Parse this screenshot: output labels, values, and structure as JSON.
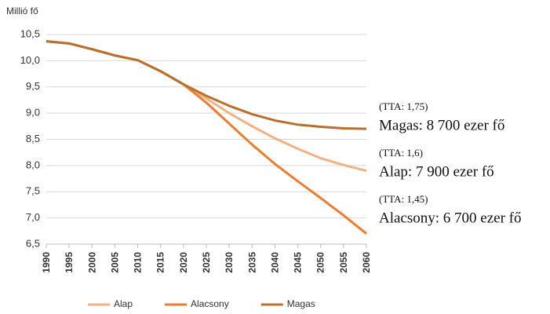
{
  "chart_data": {
    "type": "line",
    "y_axis_label": "Millió fő",
    "x": [
      1990,
      1995,
      2000,
      2005,
      2010,
      2015,
      2020,
      2025,
      2030,
      2035,
      2040,
      2045,
      2050,
      2055,
      2060
    ],
    "series": [
      {
        "name": "Alap",
        "color": "#f4b183",
        "values": [
          10.37,
          10.33,
          10.22,
          10.1,
          10.01,
          9.8,
          9.55,
          9.28,
          9.0,
          8.75,
          8.52,
          8.32,
          8.14,
          8.01,
          7.9
        ]
      },
      {
        "name": "Alacsony",
        "color": "#ed7d31",
        "values": [
          10.37,
          10.33,
          10.22,
          10.1,
          10.01,
          9.8,
          9.55,
          9.2,
          8.8,
          8.4,
          8.03,
          7.7,
          7.38,
          7.05,
          6.7
        ]
      },
      {
        "name": "Magas",
        "color": "#b8702e",
        "values": [
          10.37,
          10.33,
          10.22,
          10.1,
          10.01,
          9.8,
          9.55,
          9.33,
          9.14,
          8.98,
          8.86,
          8.78,
          8.74,
          8.71,
          8.7
        ]
      }
    ],
    "xlim": [
      1990,
      2060
    ],
    "xticks": [
      1990,
      1995,
      2000,
      2005,
      2010,
      2015,
      2020,
      2025,
      2030,
      2035,
      2040,
      2045,
      2050,
      2055,
      2060
    ],
    "ylim": [
      6.5,
      10.5
    ],
    "yticks": [
      {
        "value": 6.5,
        "label": "6,5"
      },
      {
        "value": 7,
        "label": "7,0"
      },
      {
        "value": 7.5,
        "label": "7,5"
      },
      {
        "value": 8,
        "label": "8,0"
      },
      {
        "value": 8.5,
        "label": "8,5"
      },
      {
        "value": 9,
        "label": "9,0"
      },
      {
        "value": 9.5,
        "label": "9,5"
      },
      {
        "value": 10,
        "label": "10,0"
      },
      {
        "value": 10.5,
        "label": "10,5"
      }
    ],
    "grid": true,
    "legend": "bottom",
    "annotations": [
      {
        "note": "(TTA: 1,75)",
        "text": "Magas: 8 700 ezer fő"
      },
      {
        "note": "(TTA: 1,6)",
        "text": "Alap: 7 900 ezer fő"
      },
      {
        "note": "(TTA: 1,45)",
        "text": "Alacsony: 6 700 ezer fő"
      }
    ]
  }
}
